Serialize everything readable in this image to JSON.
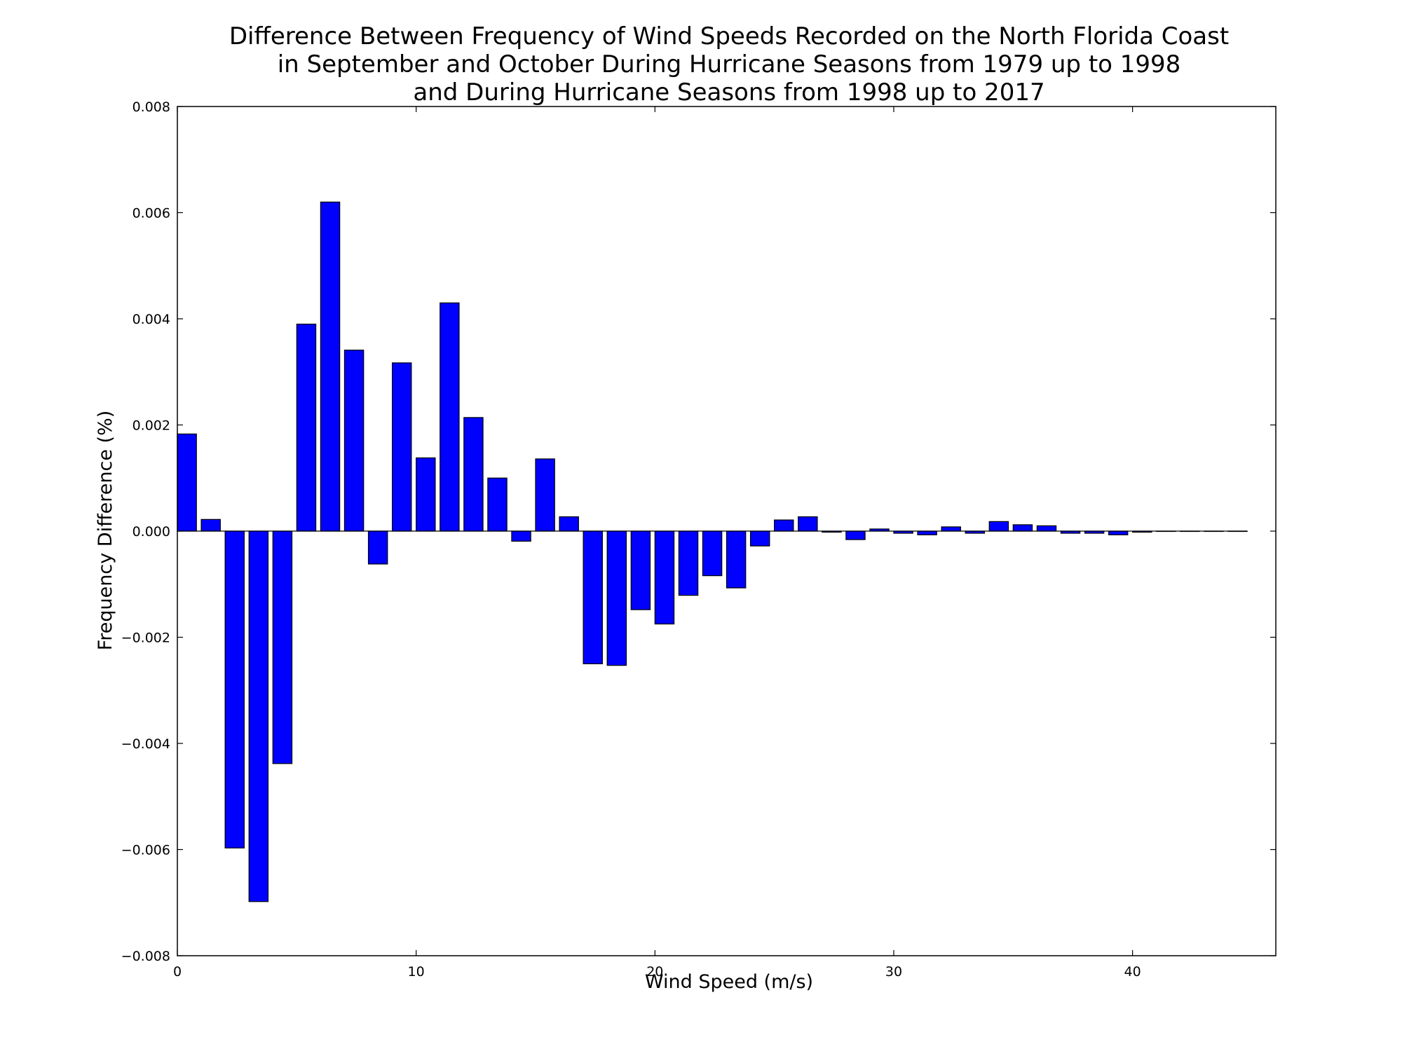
{
  "chart_data": {
    "type": "bar",
    "title": [
      "Difference Between Frequency of Wind Speeds Recorded on the North Florida Coast",
      "in September and October During Hurricane Seasons from 1979 up to 1998",
      "and During Hurricane Seasons from 1998 up to 2017"
    ],
    "xlabel": "Wind Speed (m/s)",
    "ylabel": "Frequency Difference (%)",
    "xlim": [
      0,
      46
    ],
    "ylim": [
      -0.008,
      0.008
    ],
    "xticks": [
      "0",
      "10",
      "20",
      "30",
      "40"
    ],
    "xtick_values": [
      0,
      10,
      20,
      30,
      40
    ],
    "yticks": [
      "−0.008",
      "−0.006",
      "−0.004",
      "−0.002",
      "0.000",
      "0.002",
      "0.004",
      "0.006",
      "0.008"
    ],
    "ytick_values": [
      -0.008,
      -0.006,
      -0.004,
      -0.002,
      0,
      0.002,
      0.004,
      0.006,
      0.008
    ],
    "bar_width": 0.8,
    "x": [
      0,
      1,
      2,
      3,
      4,
      5,
      6,
      7,
      8,
      9,
      10,
      11,
      12,
      13,
      14,
      15,
      16,
      17,
      18,
      19,
      20,
      21,
      22,
      23,
      24,
      25,
      26,
      27,
      28,
      29,
      30,
      31,
      32,
      33,
      34,
      35,
      36,
      37,
      38,
      39,
      40,
      41,
      42,
      43,
      44
    ],
    "values": [
      0.00183,
      0.00022,
      -0.00597,
      -0.00698,
      -0.00438,
      0.0039,
      0.0062,
      0.00341,
      -0.00062,
      0.00317,
      0.00138,
      0.0043,
      0.00214,
      0.001,
      -0.00019,
      0.00136,
      0.00027,
      -0.0025,
      -0.00253,
      -0.00148,
      -0.00175,
      -0.00121,
      -0.00084,
      -0.00107,
      -0.00028,
      0.00021,
      0.00027,
      -2e-05,
      -0.00016,
      4e-05,
      -4e-05,
      -7e-05,
      8e-05,
      -4e-05,
      0.00018,
      0.00012,
      0.0001,
      -4e-05,
      -4e-05,
      -7e-05,
      -2e-05,
      0.0,
      0.0,
      0.0,
      0.0
    ],
    "bar_color": "#0000ff",
    "grid": false,
    "legend": "none"
  }
}
